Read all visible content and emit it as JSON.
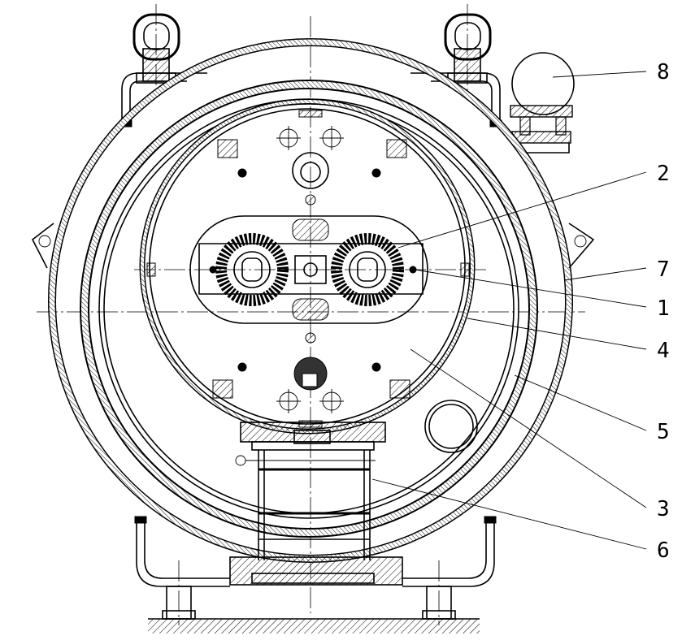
{
  "drawing": {
    "callouts": [
      {
        "id": "c8",
        "label": "8"
      },
      {
        "id": "c2",
        "label": "2"
      },
      {
        "id": "c7",
        "label": "7"
      },
      {
        "id": "c1",
        "label": "1"
      },
      {
        "id": "c4",
        "label": "4"
      },
      {
        "id": "c5",
        "label": "5"
      },
      {
        "id": "c3",
        "label": "3"
      },
      {
        "id": "c6",
        "label": "6"
      }
    ]
  }
}
